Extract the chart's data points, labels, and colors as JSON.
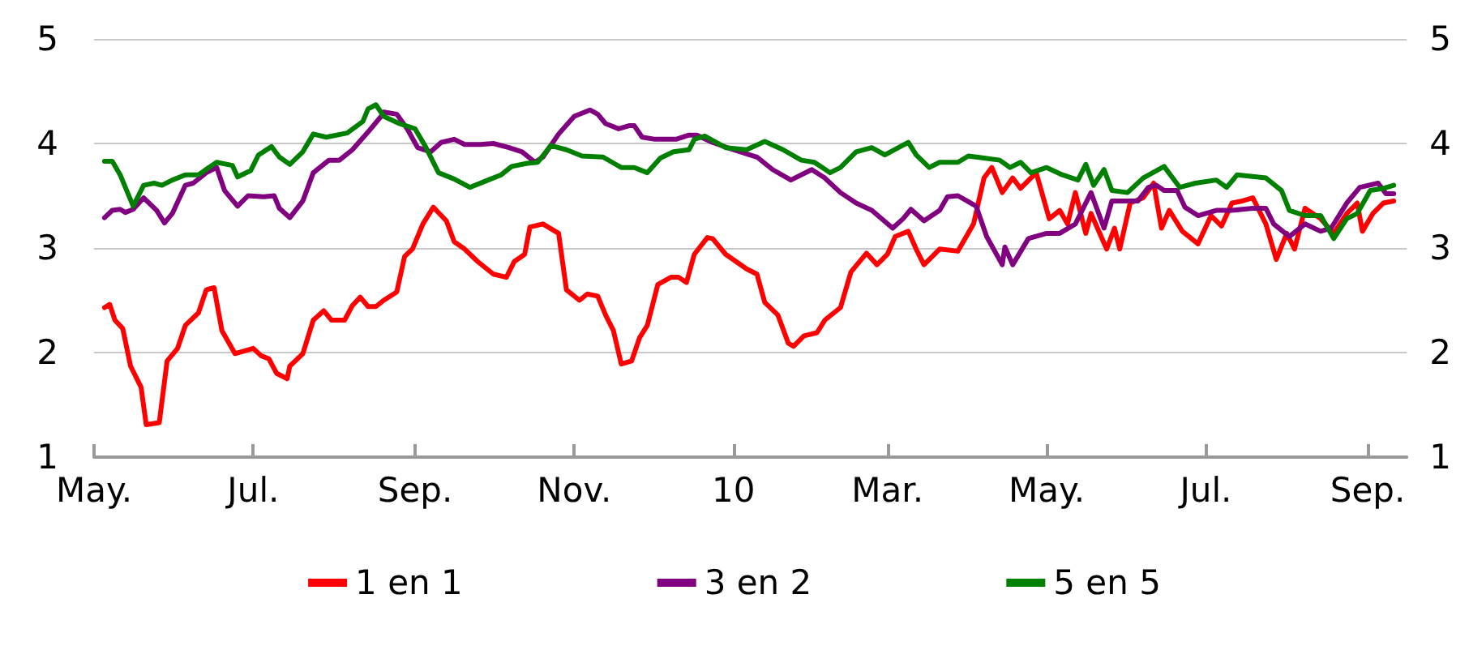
{
  "chart_data": {
    "type": "line",
    "xlim": [
      "2009-05-01",
      "2010-09-16"
    ],
    "xticks": [
      {
        "value": "2009-05-01",
        "label": "May."
      },
      {
        "value": "2009-07-01",
        "label": "Jul."
      },
      {
        "value": "2009-09-01",
        "label": "Sep."
      },
      {
        "value": "2009-11-01",
        "label": "Nov."
      },
      {
        "value": "2010-01-01",
        "label": "10"
      },
      {
        "value": "2010-03-01",
        "label": "Mar."
      },
      {
        "value": "2010-05-01",
        "label": "May."
      },
      {
        "value": "2010-07-01",
        "label": "Jul."
      },
      {
        "value": "2010-09-01",
        "label": "Sep."
      }
    ],
    "ylim": [
      1,
      5
    ],
    "yticks": [
      1,
      2,
      3,
      4,
      5
    ],
    "y2lim": [
      1,
      5
    ],
    "y2ticks": [
      1,
      2,
      3,
      4,
      5
    ],
    "grid": "y",
    "legend": "bottom",
    "marker": "none",
    "line_style": "solid",
    "series": [
      {
        "name": "1 en 1",
        "color": "#ff0000",
        "x": [
          "2009-05-05",
          "2009-05-07",
          "2009-05-09",
          "2009-05-12",
          "2009-05-15",
          "2009-05-19",
          "2009-05-21",
          "2009-05-26",
          "2009-05-29",
          "2009-06-02",
          "2009-06-05",
          "2009-06-10",
          "2009-06-13",
          "2009-06-16",
          "2009-06-19",
          "2009-06-24",
          "2009-07-01",
          "2009-07-04",
          "2009-07-07",
          "2009-07-10",
          "2009-07-14",
          "2009-07-15",
          "2009-07-20",
          "2009-07-24",
          "2009-07-28",
          "2009-07-31",
          "2009-08-05",
          "2009-08-08",
          "2009-08-11",
          "2009-08-14",
          "2009-08-17",
          "2009-08-20",
          "2009-08-25",
          "2009-08-28",
          "2009-08-31",
          "2009-09-04",
          "2009-09-08",
          "2009-09-13",
          "2009-09-16",
          "2009-09-20",
          "2009-09-25",
          "2009-10-01",
          "2009-10-06",
          "2009-10-09",
          "2009-10-13",
          "2009-10-15",
          "2009-10-20",
          "2009-10-26",
          "2009-10-29",
          "2009-11-03",
          "2009-11-06",
          "2009-11-10",
          "2009-11-13",
          "2009-11-16",
          "2009-11-19",
          "2009-11-23",
          "2009-11-26",
          "2009-11-29",
          "2009-12-03",
          "2009-12-08",
          "2009-12-11",
          "2009-12-14",
          "2009-12-17",
          "2009-12-22",
          "2009-12-24",
          "2009-12-29",
          "2010-01-06",
          "2010-01-10",
          "2010-01-13",
          "2010-01-18",
          "2010-01-22",
          "2010-01-24",
          "2010-01-28",
          "2010-02-02",
          "2010-02-05",
          "2010-02-11",
          "2010-02-15",
          "2010-02-21",
          "2010-02-25",
          "2010-03-01",
          "2010-03-04",
          "2010-03-09",
          "2010-03-12",
          "2010-03-15",
          "2010-03-21",
          "2010-03-28",
          "2010-04-03",
          "2010-04-07",
          "2010-04-10",
          "2010-04-14",
          "2010-04-18",
          "2010-04-21",
          "2010-04-27",
          "2010-05-02",
          "2010-05-06",
          "2010-05-09",
          "2010-05-12",
          "2010-05-16",
          "2010-05-18",
          "2010-05-24",
          "2010-05-27",
          "2010-05-29",
          "2010-06-02",
          "2010-06-07",
          "2010-06-11",
          "2010-06-14",
          "2010-06-17",
          "2010-06-22",
          "2010-06-28",
          "2010-07-03",
          "2010-07-07",
          "2010-07-11",
          "2010-07-15",
          "2010-07-19",
          "2010-07-24",
          "2010-07-28",
          "2010-08-01",
          "2010-08-04",
          "2010-08-08",
          "2010-08-14",
          "2010-08-19",
          "2010-08-24",
          "2010-08-28",
          "2010-08-30",
          "2010-09-03",
          "2010-09-07",
          "2010-09-11"
        ],
        "values": [
          2.43,
          2.46,
          2.31,
          2.23,
          1.87,
          1.67,
          1.31,
          1.33,
          1.92,
          2.04,
          2.26,
          2.38,
          2.6,
          2.62,
          2.21,
          1.99,
          2.04,
          1.97,
          1.94,
          1.8,
          1.75,
          1.87,
          1.99,
          2.31,
          2.4,
          2.31,
          2.31,
          2.45,
          2.53,
          2.44,
          2.44,
          2.5,
          2.58,
          2.92,
          2.99,
          3.23,
          3.39,
          3.26,
          3.06,
          2.99,
          2.87,
          2.75,
          2.72,
          2.87,
          2.94,
          3.2,
          3.23,
          3.14,
          2.6,
          2.5,
          2.56,
          2.54,
          2.36,
          2.21,
          1.89,
          1.92,
          2.14,
          2.26,
          2.65,
          2.72,
          2.72,
          2.67,
          2.94,
          3.1,
          3.09,
          2.94,
          2.8,
          2.75,
          2.48,
          2.36,
          2.09,
          2.06,
          2.16,
          2.19,
          2.31,
          2.43,
          2.77,
          2.95,
          2.84,
          2.94,
          3.11,
          3.16,
          2.99,
          2.84,
          2.99,
          2.97,
          3.23,
          3.67,
          3.77,
          3.53,
          3.67,
          3.57,
          3.72,
          3.28,
          3.36,
          3.23,
          3.53,
          3.14,
          3.33,
          2.99,
          3.19,
          2.99,
          3.43,
          3.48,
          3.62,
          3.19,
          3.36,
          3.16,
          3.04,
          3.31,
          3.21,
          3.43,
          3.45,
          3.48,
          3.23,
          2.89,
          3.14,
          2.99,
          3.38,
          3.28,
          3.14,
          3.33,
          3.43,
          3.16,
          3.33,
          3.43,
          3.45
        ]
      },
      {
        "name": "3 en 2",
        "color": "#800080",
        "x": [
          "2009-05-05",
          "2009-05-08",
          "2009-05-11",
          "2009-05-13",
          "2009-05-16",
          "2009-05-20",
          "2009-05-25",
          "2009-05-28",
          "2009-05-31",
          "2009-06-05",
          "2009-06-08",
          "2009-06-13",
          "2009-06-17",
          "2009-06-20",
          "2009-06-25",
          "2009-06-29",
          "2009-07-05",
          "2009-07-09",
          "2009-07-11",
          "2009-07-15",
          "2009-07-20",
          "2009-07-24",
          "2009-07-30",
          "2009-08-03",
          "2009-08-08",
          "2009-08-14",
          "2009-08-19",
          "2009-08-20",
          "2009-08-25",
          "2009-08-29",
          "2009-09-02",
          "2009-09-07",
          "2009-09-11",
          "2009-09-16",
          "2009-09-20",
          "2009-09-26",
          "2009-10-01",
          "2009-10-07",
          "2009-10-12",
          "2009-10-17",
          "2009-10-20",
          "2009-10-26",
          "2009-11-01",
          "2009-11-07",
          "2009-11-10",
          "2009-11-13",
          "2009-11-18",
          "2009-11-22",
          "2009-11-24",
          "2009-11-27",
          "2009-12-02",
          "2009-12-10",
          "2009-12-15",
          "2009-12-18",
          "2009-12-24",
          "2010-01-01",
          "2010-01-10",
          "2010-01-16",
          "2010-01-23",
          "2010-01-31",
          "2010-02-05",
          "2010-02-11",
          "2010-02-17",
          "2010-02-23",
          "2010-03-03",
          "2010-03-07",
          "2010-03-10",
          "2010-03-15",
          "2010-03-21",
          "2010-03-24",
          "2010-03-28",
          "2010-04-04",
          "2010-04-08",
          "2010-04-14",
          "2010-04-15",
          "2010-04-18",
          "2010-04-24",
          "2010-05-01",
          "2010-05-06",
          "2010-05-12",
          "2010-05-18",
          "2010-05-23",
          "2010-05-26",
          "2010-05-30",
          "2010-06-05",
          "2010-06-09",
          "2010-06-12",
          "2010-06-15",
          "2010-06-20",
          "2010-06-23",
          "2010-06-28",
          "2010-07-05",
          "2010-07-11",
          "2010-07-15",
          "2010-07-19",
          "2010-07-24",
          "2010-07-27",
          "2010-08-02",
          "2010-08-08",
          "2010-08-14",
          "2010-08-18",
          "2010-08-24",
          "2010-08-29",
          "2010-09-05",
          "2010-09-08",
          "2010-09-11"
        ],
        "values": [
          3.29,
          3.36,
          3.37,
          3.34,
          3.37,
          3.48,
          3.36,
          3.24,
          3.33,
          3.6,
          3.62,
          3.72,
          3.77,
          3.55,
          3.4,
          3.5,
          3.49,
          3.5,
          3.38,
          3.29,
          3.45,
          3.72,
          3.84,
          3.84,
          3.94,
          4.11,
          4.26,
          4.3,
          4.28,
          4.14,
          3.96,
          3.92,
          4.01,
          4.04,
          3.99,
          3.99,
          4.0,
          3.96,
          3.92,
          3.82,
          3.87,
          4.09,
          4.26,
          4.32,
          4.28,
          4.19,
          4.14,
          4.17,
          4.17,
          4.06,
          4.04,
          4.04,
          4.08,
          4.08,
          4.01,
          3.94,
          3.87,
          3.75,
          3.65,
          3.75,
          3.67,
          3.53,
          3.43,
          3.36,
          3.19,
          3.28,
          3.37,
          3.26,
          3.36,
          3.49,
          3.5,
          3.4,
          3.11,
          2.84,
          3.01,
          2.84,
          3.09,
          3.14,
          3.14,
          3.23,
          3.53,
          3.19,
          3.45,
          3.45,
          3.45,
          3.58,
          3.6,
          3.55,
          3.55,
          3.39,
          3.31,
          3.36,
          3.36,
          3.37,
          3.38,
          3.38,
          3.23,
          3.11,
          3.23,
          3.16,
          3.19,
          3.43,
          3.58,
          3.62,
          3.52,
          3.52
        ]
      },
      {
        "name": "5 en 5",
        "color": "#008000",
        "x": [
          "2009-05-05",
          "2009-05-08",
          "2009-05-11",
          "2009-05-16",
          "2009-05-20",
          "2009-05-24",
          "2009-05-27",
          "2009-05-31",
          "2009-06-05",
          "2009-06-10",
          "2009-06-14",
          "2009-06-17",
          "2009-06-23",
          "2009-06-25",
          "2009-06-30",
          "2009-07-03",
          "2009-07-08",
          "2009-07-11",
          "2009-07-15",
          "2009-07-20",
          "2009-07-24",
          "2009-07-29",
          "2009-08-06",
          "2009-08-12",
          "2009-08-14",
          "2009-08-17",
          "2009-08-20",
          "2009-08-26",
          "2009-09-01",
          "2009-09-05",
          "2009-09-10",
          "2009-09-16",
          "2009-09-22",
          "2009-09-29",
          "2009-10-04",
          "2009-10-08",
          "2009-10-14",
          "2009-10-18",
          "2009-10-23",
          "2009-10-29",
          "2009-11-04",
          "2009-11-12",
          "2009-11-19",
          "2009-11-24",
          "2009-11-29",
          "2009-12-04",
          "2009-12-09",
          "2009-12-15",
          "2009-12-17",
          "2009-12-21",
          "2009-12-29",
          "2010-01-06",
          "2010-01-13",
          "2010-01-20",
          "2010-01-27",
          "2010-02-01",
          "2010-02-07",
          "2010-02-11",
          "2010-02-17",
          "2010-02-23",
          "2010-02-28",
          "2010-03-09",
          "2010-03-12",
          "2010-03-17",
          "2010-03-21",
          "2010-03-28",
          "2010-04-01",
          "2010-04-07",
          "2010-04-13",
          "2010-04-17",
          "2010-04-21",
          "2010-04-25",
          "2010-05-01",
          "2010-05-07",
          "2010-05-13",
          "2010-05-16",
          "2010-05-19",
          "2010-05-23",
          "2010-05-26",
          "2010-06-01",
          "2010-06-07",
          "2010-06-15",
          "2010-06-21",
          "2010-06-27",
          "2010-07-05",
          "2010-07-09",
          "2010-07-13",
          "2010-07-24",
          "2010-07-30",
          "2010-08-02",
          "2010-08-08",
          "2010-08-14",
          "2010-08-19",
          "2010-08-24",
          "2010-08-28",
          "2010-09-02",
          "2010-09-07",
          "2010-09-11"
        ],
        "values": [
          3.83,
          3.83,
          3.7,
          3.4,
          3.6,
          3.62,
          3.6,
          3.65,
          3.7,
          3.7,
          3.77,
          3.82,
          3.79,
          3.68,
          3.74,
          3.89,
          3.97,
          3.87,
          3.8,
          3.92,
          4.09,
          4.06,
          4.1,
          4.21,
          4.33,
          4.37,
          4.26,
          4.19,
          4.14,
          3.97,
          3.72,
          3.66,
          3.58,
          3.65,
          3.7,
          3.78,
          3.81,
          3.82,
          3.98,
          3.94,
          3.88,
          3.87,
          3.77,
          3.77,
          3.72,
          3.86,
          3.92,
          3.94,
          4.04,
          4.07,
          3.96,
          3.94,
          4.02,
          3.94,
          3.84,
          3.82,
          3.72,
          3.77,
          3.92,
          3.96,
          3.89,
          4.01,
          3.89,
          3.77,
          3.82,
          3.82,
          3.88,
          3.86,
          3.84,
          3.77,
          3.82,
          3.72,
          3.77,
          3.7,
          3.65,
          3.8,
          3.6,
          3.75,
          3.55,
          3.53,
          3.67,
          3.78,
          3.58,
          3.62,
          3.65,
          3.58,
          3.7,
          3.67,
          3.55,
          3.36,
          3.31,
          3.31,
          3.09,
          3.28,
          3.33,
          3.55,
          3.57,
          3.6
        ]
      }
    ]
  }
}
